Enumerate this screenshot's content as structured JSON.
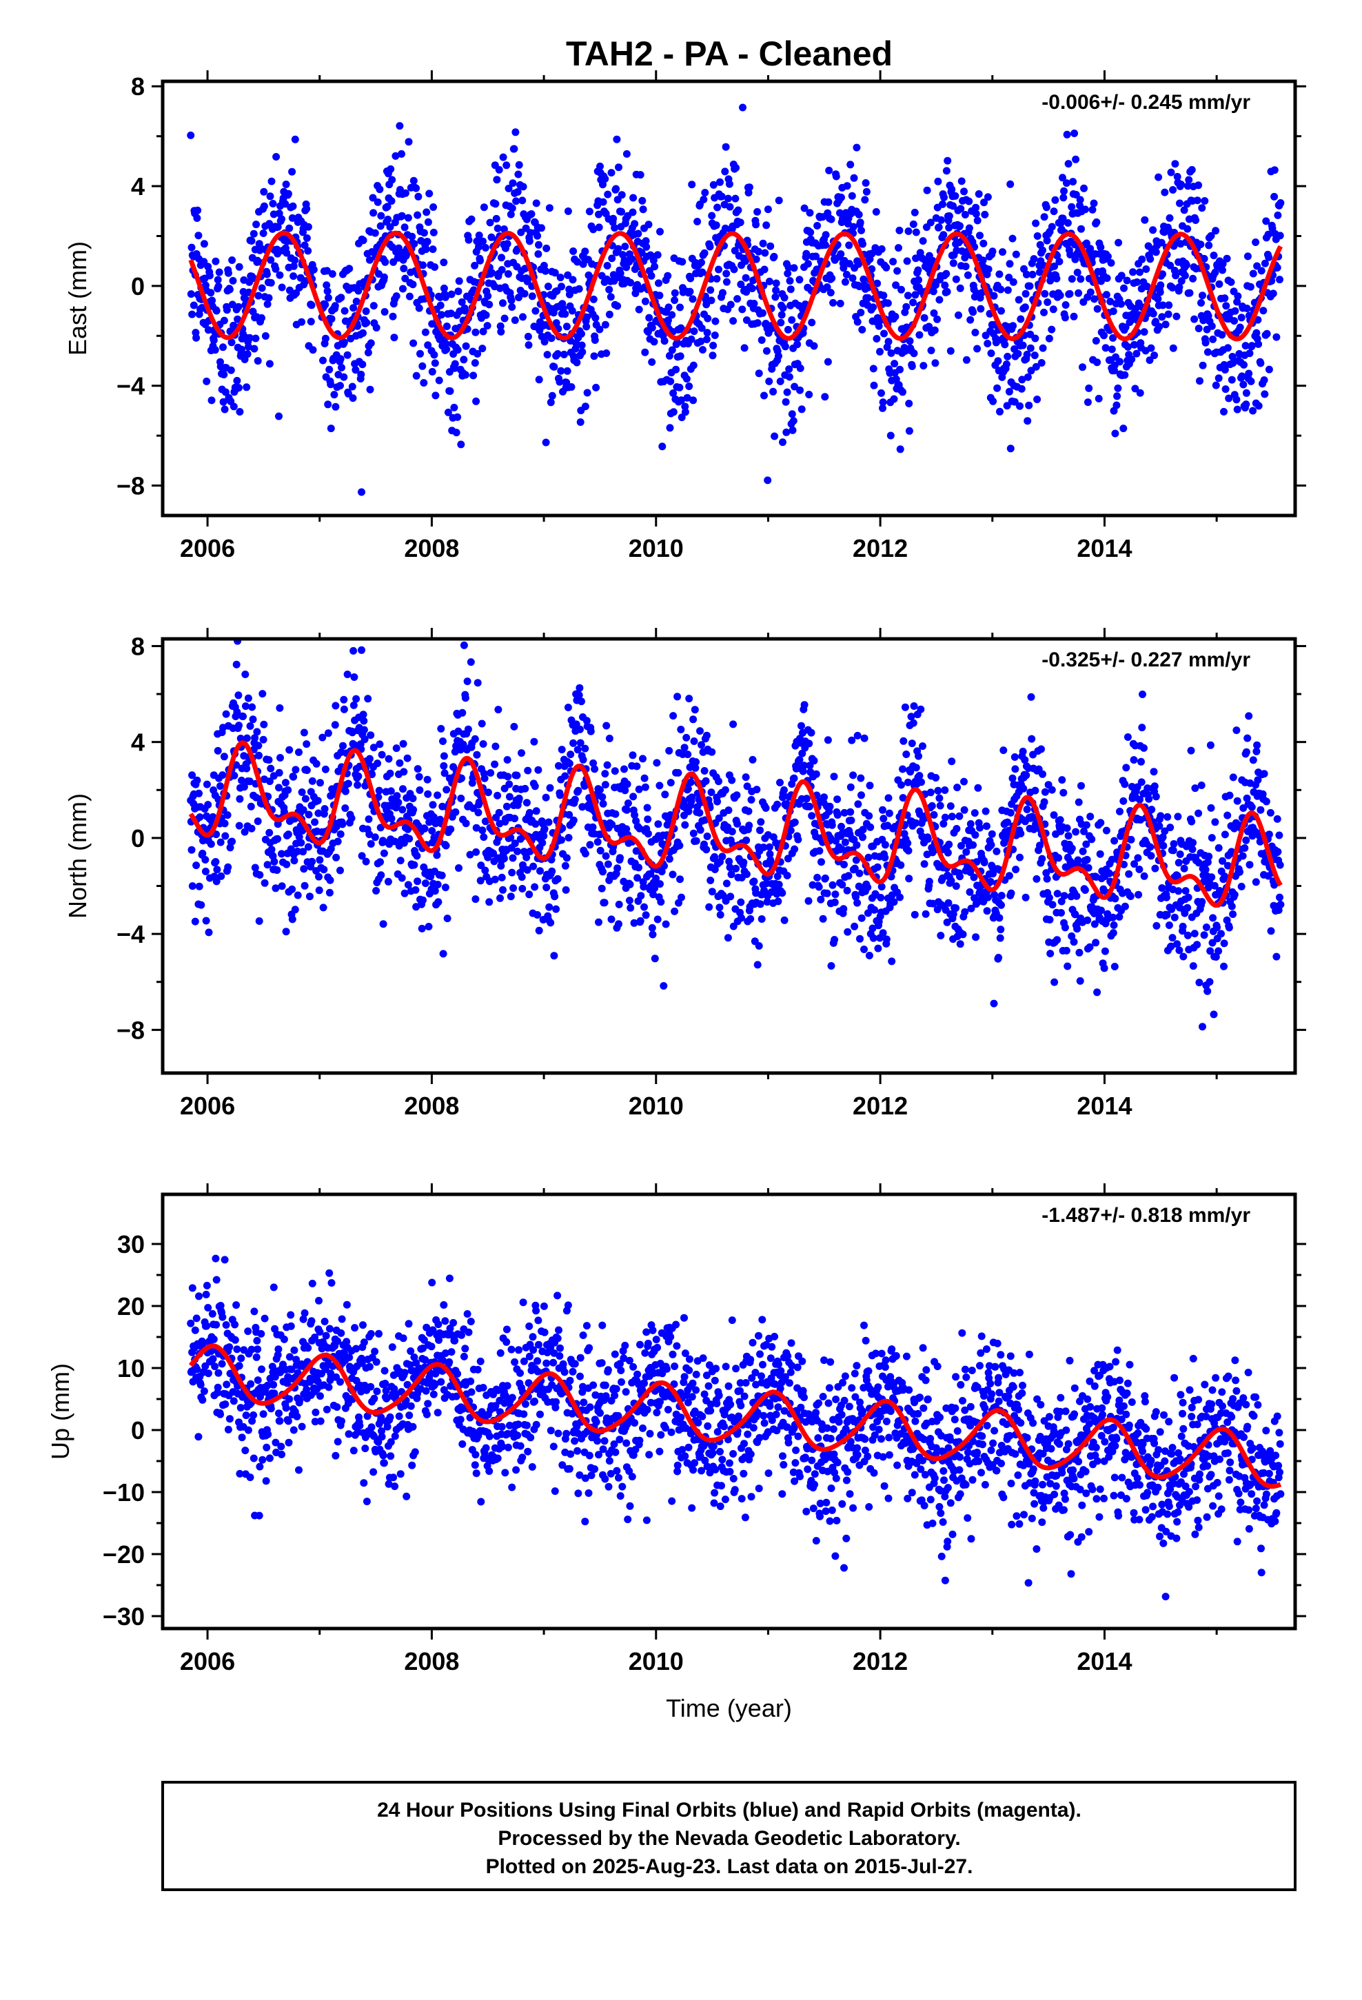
{
  "title": "TAH2  - PA - Cleaned",
  "footer": {
    "line1": "24 Hour Positions Using Final Orbits (blue) and Rapid Orbits (magenta).",
    "line2": "Processed by the Nevada Geodetic Laboratory.",
    "line3": "Plotted on 2025-Aug-23. Last data on 2015-Jul-27."
  },
  "chart_data": [
    {
      "type": "scatter",
      "panel": "east",
      "ylabel": "East (mm)",
      "xlabel": "",
      "rate_text": "-0.006+/- 0.245 mm/yr",
      "xlim": [
        2005.6,
        2015.7
      ],
      "ylim": [
        -9.2,
        8.2
      ],
      "xticks": [
        2006,
        2008,
        2010,
        2012,
        2014
      ],
      "yticks": [
        -8,
        -4,
        0,
        4,
        8
      ],
      "ytick_labels": [
        "−8",
        "−4",
        "0",
        "4",
        "8"
      ],
      "data_start": 2005.85,
      "data_end": 2015.57,
      "trend": {
        "intercept": 0.0,
        "slope": -0.006,
        "ref_year": 2010.7,
        "annual_amp": 2.1,
        "annual_phase": 0.68,
        "semiannual_amp": 0.0,
        "semiannual_phase": 0.0,
        "jumps": []
      },
      "scatter_sd": 1.8,
      "colors": {
        "points": "#0000ff",
        "model": "#ff0000"
      }
    },
    {
      "type": "scatter",
      "panel": "north",
      "ylabel": "North (mm)",
      "xlabel": "",
      "rate_text": "-0.325+/- 0.227 mm/yr",
      "xlim": [
        2005.6,
        2015.7
      ],
      "ylim": [
        -9.8,
        8.3
      ],
      "xticks": [
        2006,
        2008,
        2010,
        2012,
        2014
      ],
      "yticks": [
        -8,
        -4,
        0,
        4,
        8
      ],
      "ytick_labels": [
        "−8",
        "−4",
        "0",
        "4",
        "8"
      ],
      "data_start": 2005.85,
      "data_end": 2015.57,
      "trend": {
        "intercept": 0.2,
        "slope": -0.325,
        "ref_year": 2010.7,
        "annual_amp": 1.5,
        "annual_phase": 0.35,
        "semiannual_amp": 0.9,
        "semiannual_phase": 0.3,
        "jumps": []
      },
      "scatter_sd": 1.8,
      "colors": {
        "points": "#0000ff",
        "model": "#ff0000"
      }
    },
    {
      "type": "scatter",
      "panel": "up",
      "ylabel": "Up (mm)",
      "xlabel": "Time (year)",
      "rate_text": "-1.487+/- 0.818 mm/yr",
      "xlim": [
        2005.6,
        2015.7
      ],
      "ylim": [
        -32,
        38
      ],
      "xticks": [
        2006,
        2008,
        2010,
        2012,
        2014
      ],
      "yticks": [
        -30,
        -20,
        -10,
        0,
        10,
        20,
        30
      ],
      "ytick_labels": [
        "−30",
        "−20",
        "−10",
        "0",
        "10",
        "20",
        "30"
      ],
      "data_start": 2005.85,
      "data_end": 2015.57,
      "trend": {
        "intercept": 2.0,
        "slope": -1.487,
        "ref_year": 2010.7,
        "annual_amp": 4.2,
        "annual_phase": 0.03,
        "semiannual_amp": 0.6,
        "semiannual_phase": 0.1,
        "jumps": []
      },
      "scatter_sd": 6.0,
      "colors": {
        "points": "#0000ff",
        "model": "#ff0000"
      }
    }
  ]
}
